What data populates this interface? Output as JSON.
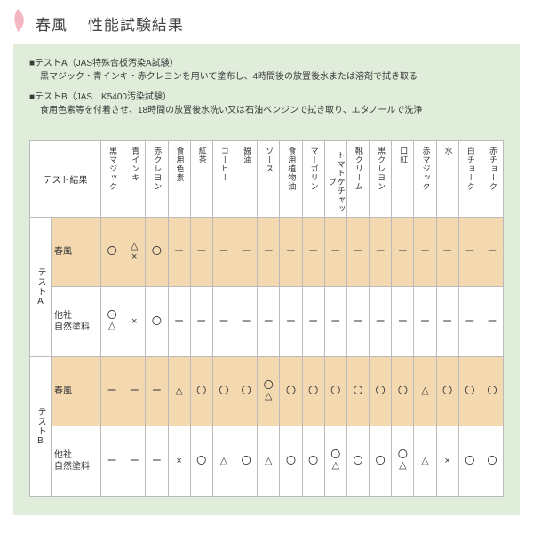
{
  "colors": {
    "panel_bg": "#e1eddb",
    "highlight_bg": "#f3d8b0",
    "border": "#bbbbbb",
    "petal": "#f5b6c2",
    "text": "#3a3a3a"
  },
  "title_main": "春風",
  "title_sub": "性能試験結果",
  "notes": {
    "a_head": "■テストA（JAS特殊合板汚染A試験）",
    "a_body": "黒マジック・青インキ・赤クレヨンを用いて塗布し、4時間後の放置後水または溶剤で拭き取る",
    "b_head": "■テストB（JAS　K5400汚染試験）",
    "b_body": "食用色素等を付着させ、18時間の放置後水洗い又は石油ベンジンで拭き取り、エタノールで洗浄"
  },
  "table": {
    "result_label": "テスト結果",
    "columns": [
      "黒マジック",
      "青インキ",
      "赤クレヨン",
      "食用色素",
      "紅茶",
      "コーヒー",
      "醤油",
      "ソース",
      "食用植物油",
      "マーガリン",
      "トマトケチャップ",
      "靴クリーム",
      "黒クレヨン",
      "口紅",
      "赤マジック",
      "水",
      "白チョーク",
      "赤チョーク"
    ],
    "groups": [
      {
        "label": "テストA",
        "rows": [
          {
            "label": "春風",
            "highlight": true,
            "cells": [
              "〇",
              [
                "△",
                "×"
              ],
              "〇",
              "ー",
              "ー",
              "ー",
              "ー",
              "ー",
              "ー",
              "ー",
              "ー",
              "ー",
              "ー",
              "ー",
              "ー",
              "ー",
              "ー",
              "ー"
            ]
          },
          {
            "label": "他社\n自然塗料",
            "highlight": false,
            "cells": [
              [
                "〇",
                "△"
              ],
              "×",
              "〇",
              "ー",
              "ー",
              "ー",
              "ー",
              "ー",
              "ー",
              "ー",
              "ー",
              "ー",
              "ー",
              "ー",
              "ー",
              "ー",
              "ー",
              "ー"
            ]
          }
        ]
      },
      {
        "label": "テストB",
        "rows": [
          {
            "label": "春風",
            "highlight": true,
            "cells": [
              "ー",
              "ー",
              "ー",
              "△",
              "〇",
              "〇",
              "〇",
              [
                "〇",
                "△"
              ],
              "〇",
              "〇",
              "〇",
              "〇",
              "〇",
              "〇",
              "△",
              "〇",
              "〇",
              "〇"
            ]
          },
          {
            "label": "他社\n自然塗料",
            "highlight": false,
            "cells": [
              "ー",
              "ー",
              "ー",
              "×",
              "〇",
              "△",
              "〇",
              "△",
              "〇",
              "〇",
              [
                "〇",
                "△"
              ],
              "〇",
              "〇",
              [
                "〇",
                "△"
              ],
              "△",
              "×",
              "〇",
              "〇"
            ]
          }
        ]
      }
    ]
  }
}
